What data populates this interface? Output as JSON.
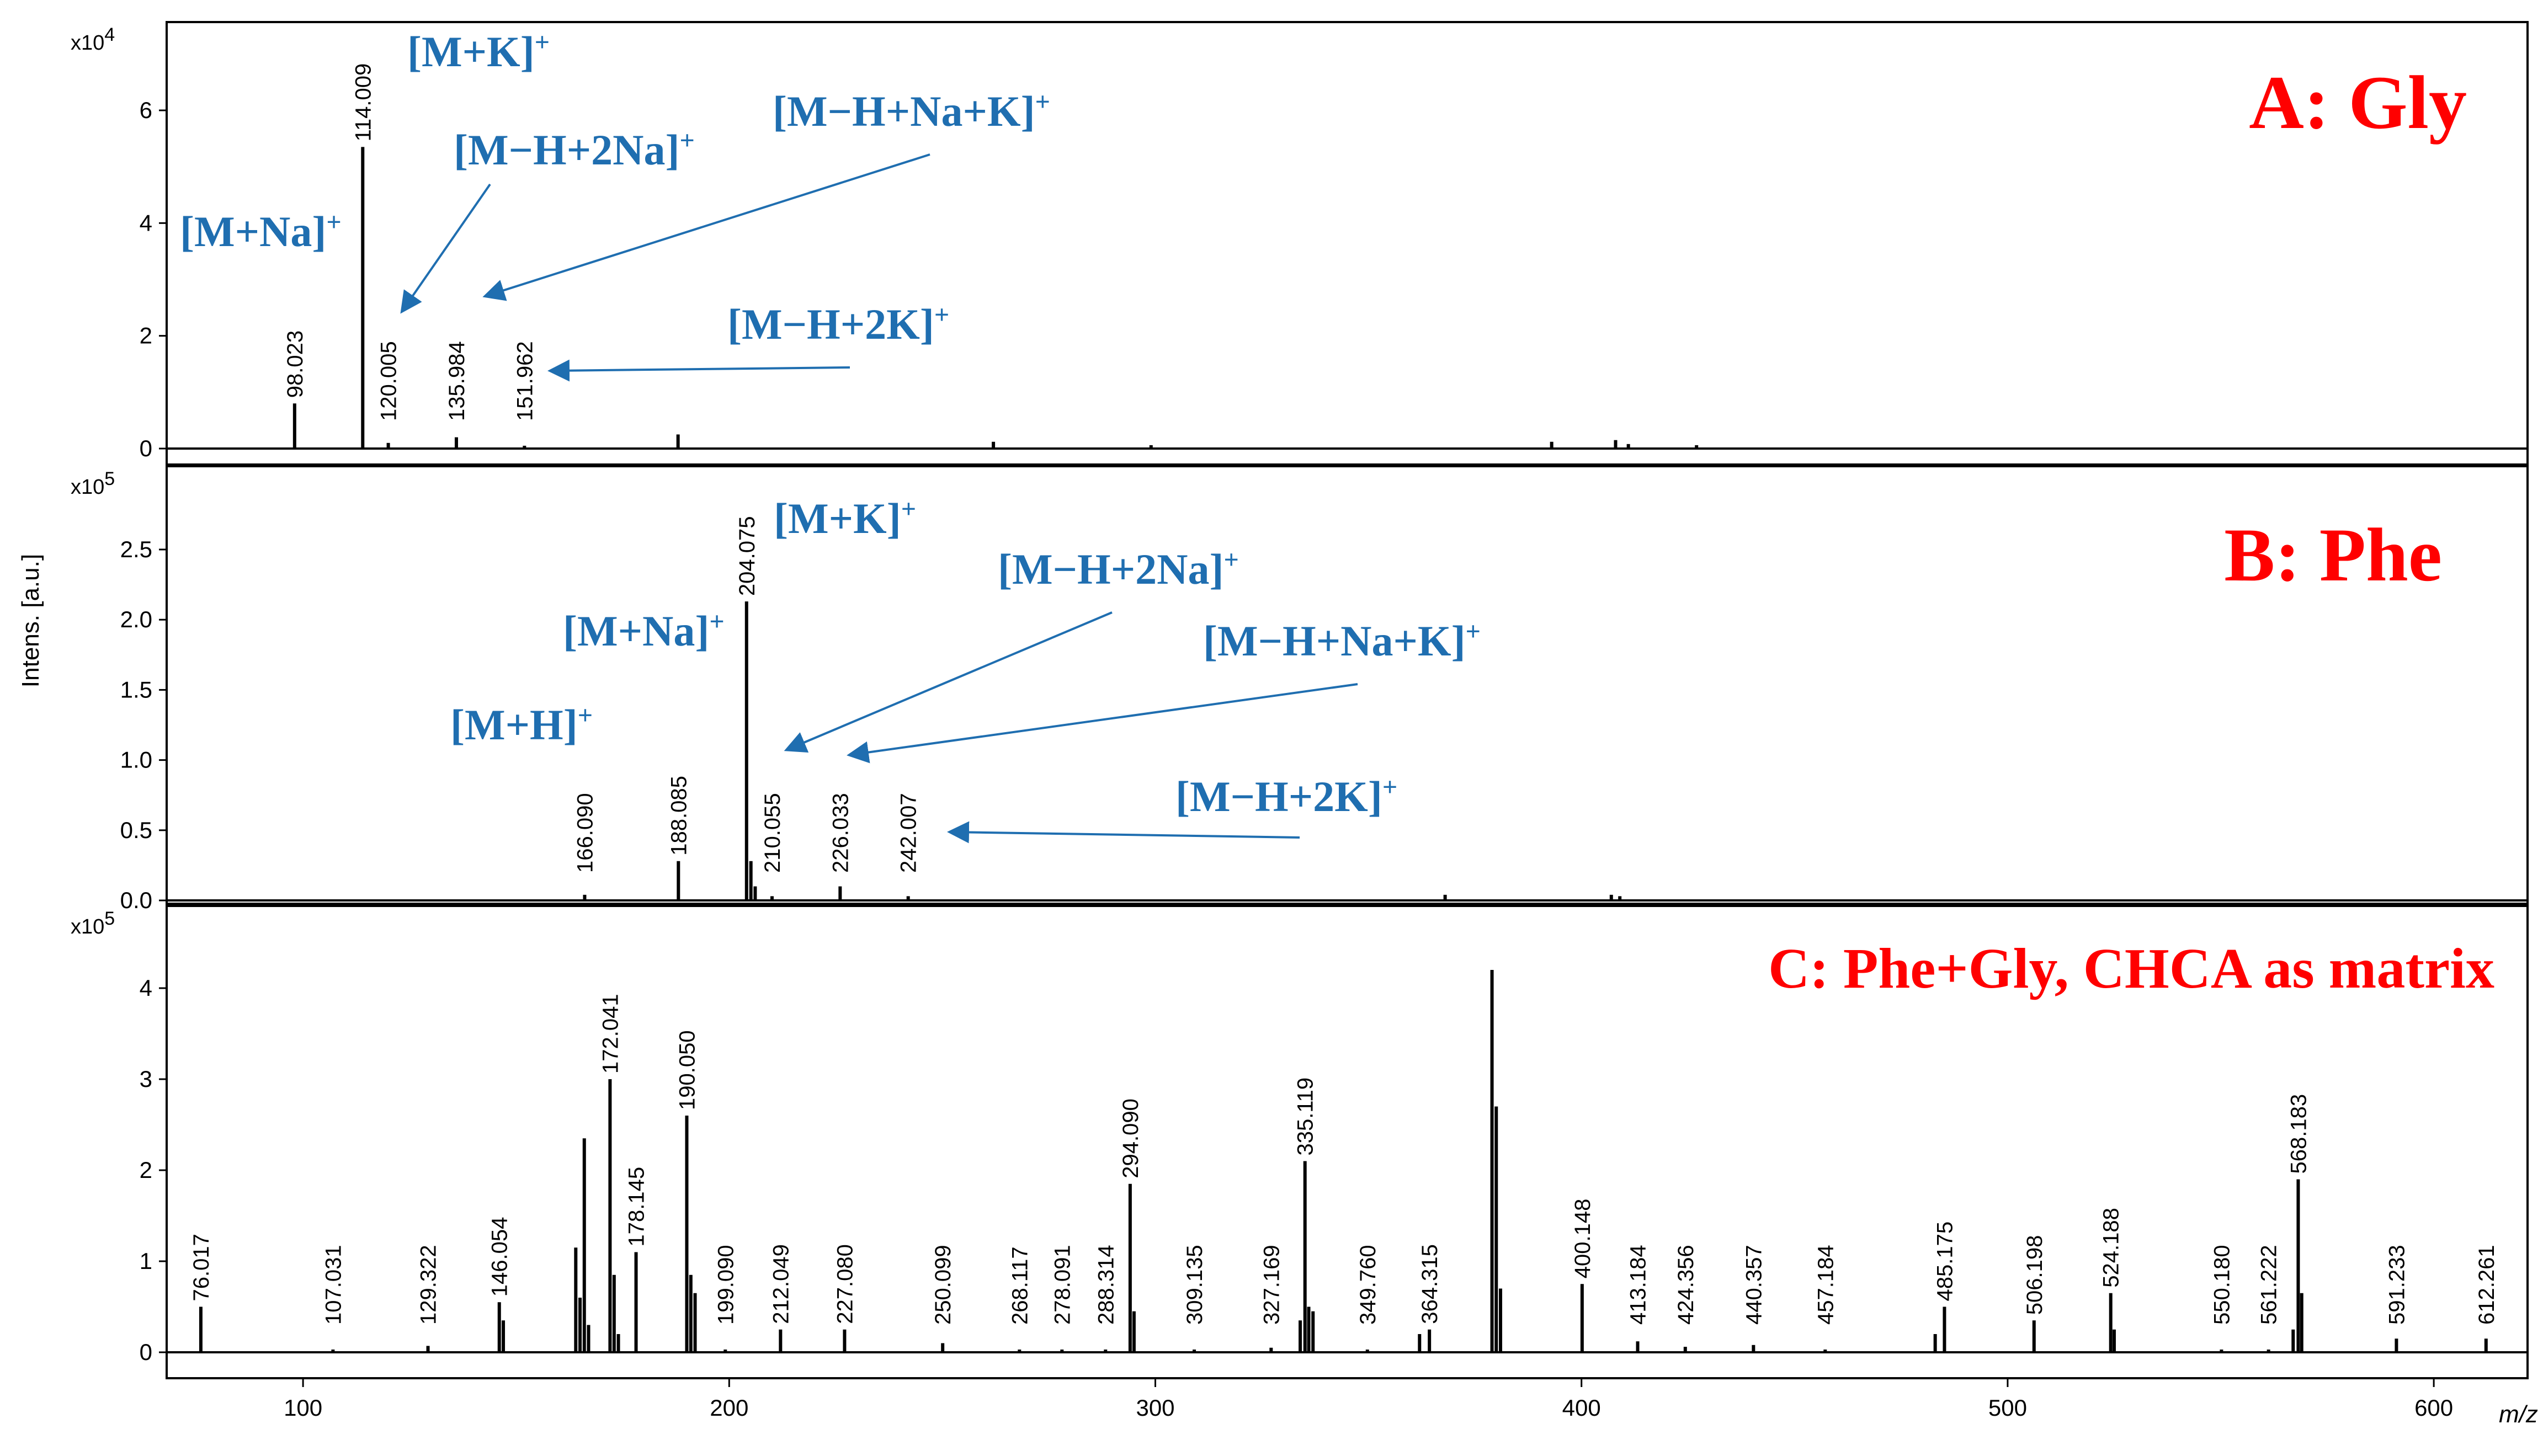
{
  "chart_data": [
    {
      "panel": "A",
      "type": "line",
      "title": "A: Gly",
      "multiplier": "x10",
      "multiplier_exp": "4",
      "ylim": [
        0,
        7.3
      ],
      "yticks": [
        0,
        2,
        4,
        6
      ],
      "ytick_labels": [
        "0",
        "2",
        "4",
        "6"
      ],
      "xlim": [
        68,
        622
      ],
      "peaks": [
        {
          "mz": 98.023,
          "y": 0.8,
          "label": "98.023"
        },
        {
          "mz": 114.009,
          "y": 5.35,
          "label": "114.009"
        },
        {
          "mz": 120.005,
          "y": 0.1,
          "label": "120.005"
        },
        {
          "mz": 135.984,
          "y": 0.2,
          "label": "135.984"
        },
        {
          "mz": 151.962,
          "y": 0.05,
          "label": "151.962"
        },
        {
          "mz": 188.0,
          "y": 0.25
        },
        {
          "mz": 262.0,
          "y": 0.12
        },
        {
          "mz": 299.0,
          "y": 0.06
        },
        {
          "mz": 393.0,
          "y": 0.12
        },
        {
          "mz": 408.0,
          "y": 0.15
        },
        {
          "mz": 411.0,
          "y": 0.08
        },
        {
          "mz": 427.0,
          "y": 0.06
        }
      ],
      "annotations": [
        {
          "base": "[M+K]",
          "sup": "+"
        },
        {
          "base": "[M−H+Na+K]",
          "sup": "+"
        },
        {
          "base": "[M−H+2Na]",
          "sup": "+"
        },
        {
          "base": "[M+Na]",
          "sup": "+"
        },
        {
          "base": "[M−H+2K]",
          "sup": "+"
        }
      ]
    },
    {
      "panel": "B",
      "type": "line",
      "title": "B: Phe",
      "multiplier": "x10",
      "multiplier_exp": "5",
      "ylabel": "Intens. [a.u.]",
      "ylim": [
        0,
        3.0
      ],
      "yticks": [
        0,
        0.5,
        1.0,
        1.5,
        2.0,
        2.5
      ],
      "ytick_labels": [
        "0.0",
        "0.5",
        "1.0",
        "1.5",
        "2.0",
        "2.5"
      ],
      "xlim": [
        68,
        622
      ],
      "peaks": [
        {
          "mz": 166.09,
          "y": 0.04,
          "label": "166.090"
        },
        {
          "mz": 188.085,
          "y": 0.28,
          "label": "188.085"
        },
        {
          "mz": 204.075,
          "y": 2.13,
          "label": "204.075"
        },
        {
          "mz": 205.1,
          "y": 0.28
        },
        {
          "mz": 206.1,
          "y": 0.1
        },
        {
          "mz": 210.055,
          "y": 0.03,
          "label": "210.055"
        },
        {
          "mz": 226.033,
          "y": 0.1,
          "label": "226.033"
        },
        {
          "mz": 242.007,
          "y": 0.03,
          "label": "242.007"
        },
        {
          "mz": 368.0,
          "y": 0.04
        },
        {
          "mz": 407.0,
          "y": 0.04
        },
        {
          "mz": 409.0,
          "y": 0.03
        }
      ],
      "annotations": [
        {
          "base": "[M+K]",
          "sup": "+"
        },
        {
          "base": "[M−H+2Na]",
          "sup": "+"
        },
        {
          "base": "[M+Na]",
          "sup": "+"
        },
        {
          "base": "[M−H+Na+K]",
          "sup": "+"
        },
        {
          "base": "[M+H]",
          "sup": "+"
        },
        {
          "base": "[M−H+2K]",
          "sup": "+"
        }
      ]
    },
    {
      "panel": "C",
      "type": "line",
      "title": "C: Phe+Gly, CHCA as matrix",
      "multiplier": "x10",
      "multiplier_exp": "5",
      "xlabel": "m/z",
      "ylim": [
        0,
        4.55
      ],
      "yticks": [
        0,
        1,
        2,
        3,
        4
      ],
      "ytick_labels": [
        "0",
        "1",
        "2",
        "3",
        "4"
      ],
      "xlim": [
        68,
        622
      ],
      "xticks": [
        100,
        200,
        300,
        400,
        500,
        600
      ],
      "xtick_labels": [
        "100",
        "200",
        "300",
        "400",
        "500",
        "600"
      ],
      "peaks": [
        {
          "mz": 76.017,
          "y": 0.5,
          "label": "76.017"
        },
        {
          "mz": 107.031,
          "y": 0.03,
          "label": "107.031"
        },
        {
          "mz": 129.322,
          "y": 0.07,
          "label": "129.322"
        },
        {
          "mz": 146.054,
          "y": 0.55,
          "label": "146.054"
        },
        {
          "mz": 147.0,
          "y": 0.35
        },
        {
          "mz": 164.0,
          "y": 1.15
        },
        {
          "mz": 165.0,
          "y": 0.6
        },
        {
          "mz": 166.0,
          "y": 2.35
        },
        {
          "mz": 167.0,
          "y": 0.3
        },
        {
          "mz": 172.041,
          "y": 3.0,
          "label": "172.041"
        },
        {
          "mz": 173.0,
          "y": 0.85
        },
        {
          "mz": 174.0,
          "y": 0.2
        },
        {
          "mz": 178.145,
          "y": 1.1,
          "label": "178.145"
        },
        {
          "mz": 190.05,
          "y": 2.6,
          "label": "190.050"
        },
        {
          "mz": 191.0,
          "y": 0.85
        },
        {
          "mz": 192.0,
          "y": 0.65
        },
        {
          "mz": 199.09,
          "y": 0.03,
          "label": "199.090"
        },
        {
          "mz": 212.049,
          "y": 0.25,
          "label": "212.049"
        },
        {
          "mz": 227.08,
          "y": 0.25,
          "label": "227.080"
        },
        {
          "mz": 250.099,
          "y": 0.1,
          "label": "250.099"
        },
        {
          "mz": 268.117,
          "y": 0.03,
          "label": "268.117"
        },
        {
          "mz": 278.091,
          "y": 0.03,
          "label": "278.091"
        },
        {
          "mz": 288.314,
          "y": 0.03,
          "label": "288.314"
        },
        {
          "mz": 294.09,
          "y": 1.85,
          "label": "294.090"
        },
        {
          "mz": 295.0,
          "y": 0.45
        },
        {
          "mz": 309.135,
          "y": 0.03,
          "label": "309.135"
        },
        {
          "mz": 327.169,
          "y": 0.05,
          "label": "327.169"
        },
        {
          "mz": 334.0,
          "y": 0.35
        },
        {
          "mz": 335.119,
          "y": 2.1,
          "label": "335.119"
        },
        {
          "mz": 336.0,
          "y": 0.5
        },
        {
          "mz": 337.0,
          "y": 0.45
        },
        {
          "mz": 349.76,
          "y": 0.03,
          "label": "349.760"
        },
        {
          "mz": 362.0,
          "y": 0.2
        },
        {
          "mz": 364.315,
          "y": 0.25,
          "label": "364.315"
        },
        {
          "mz": 379.0,
          "y": 4.2
        },
        {
          "mz": 380.0,
          "y": 2.7
        },
        {
          "mz": 381.0,
          "y": 0.7
        },
        {
          "mz": 400.148,
          "y": 0.75,
          "label": "400.148"
        },
        {
          "mz": 413.184,
          "y": 0.12,
          "label": "413.184"
        },
        {
          "mz": 424.356,
          "y": 0.06,
          "label": "424.356"
        },
        {
          "mz": 440.357,
          "y": 0.08,
          "label": "440.357"
        },
        {
          "mz": 457.184,
          "y": 0.03,
          "label": "457.184"
        },
        {
          "mz": 483.0,
          "y": 0.2
        },
        {
          "mz": 485.175,
          "y": 0.5,
          "label": "485.175"
        },
        {
          "mz": 506.198,
          "y": 0.35,
          "label": "506.198"
        },
        {
          "mz": 524.188,
          "y": 0.65,
          "label": "524.188"
        },
        {
          "mz": 525.0,
          "y": 0.25
        },
        {
          "mz": 550.18,
          "y": 0.03,
          "label": "550.180"
        },
        {
          "mz": 561.222,
          "y": 0.03,
          "label": "561.222"
        },
        {
          "mz": 567.0,
          "y": 0.25
        },
        {
          "mz": 568.183,
          "y": 1.9,
          "label": "568.183"
        },
        {
          "mz": 569.0,
          "y": 0.65
        },
        {
          "mz": 591.233,
          "y": 0.15,
          "label": "591.233"
        },
        {
          "mz": 612.261,
          "y": 0.15,
          "label": "612.261"
        }
      ]
    }
  ]
}
